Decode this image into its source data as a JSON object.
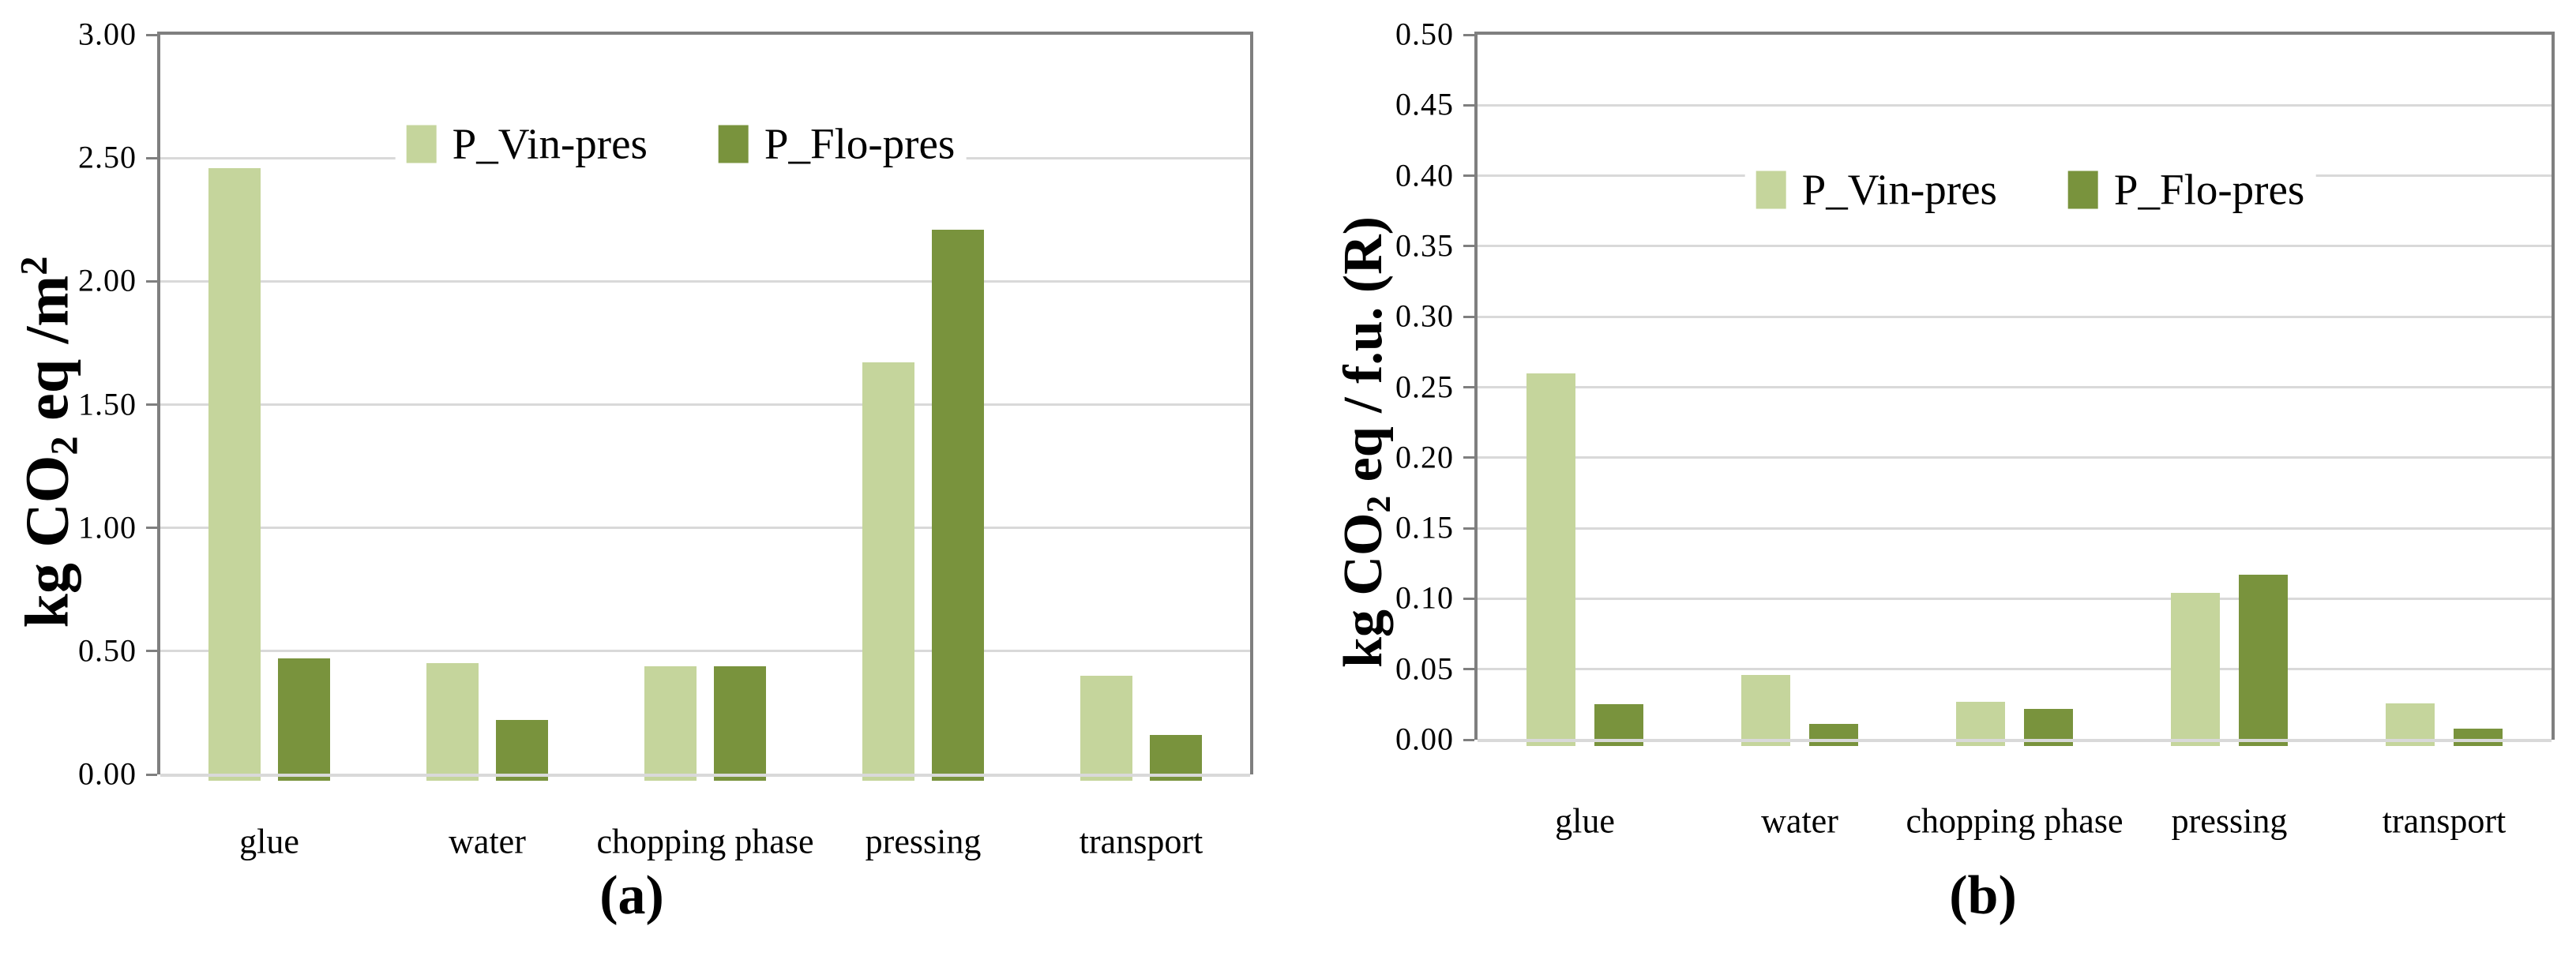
{
  "figure": {
    "background": "#FFFFFF",
    "panels": [
      "a",
      "b"
    ]
  },
  "colors": {
    "series_light_green": "#C5D59C",
    "series_dark_green": "#79933D",
    "gridline": "#D9D9D9",
    "axis_line": "#7F7F7F",
    "text": "#000000"
  },
  "chart_data": [
    {
      "id": "a",
      "type": "bar",
      "caption": "(a)",
      "ylabel": "kg CO2 eq /m2",
      "ylabel_parts": [
        {
          "t": "kg CO"
        },
        {
          "t": "2",
          "sub": true
        },
        {
          "t": " eq /m"
        },
        {
          "t": "2",
          "sup": true
        }
      ],
      "categories": [
        "glue",
        "water",
        "chopping phase",
        "pressing",
        "transport"
      ],
      "series": [
        {
          "name": "P_Vin-pres",
          "color": "#C5D59C",
          "values": [
            2.46,
            0.45,
            0.44,
            1.67,
            0.4
          ]
        },
        {
          "name": "P_Flo-pres",
          "color": "#79933D",
          "values": [
            0.47,
            0.22,
            0.44,
            2.21,
            0.16
          ]
        }
      ],
      "ylim": [
        0,
        3.0
      ],
      "ytick_step": 0.5,
      "yticks": [
        "0.00",
        "0.50",
        "1.00",
        "1.50",
        "2.00",
        "2.50",
        "3.00"
      ],
      "grid": true,
      "legend_position": "top-center-inside"
    },
    {
      "id": "b",
      "type": "bar",
      "caption": "(b)",
      "ylabel": "kg CO2 eq / f.u. (R)",
      "ylabel_parts": [
        {
          "t": "kg CO"
        },
        {
          "t": "2",
          "sub": true
        },
        {
          "t": " eq / f.u. (R)"
        }
      ],
      "categories": [
        "glue",
        "water",
        "chopping phase",
        "pressing",
        "transport"
      ],
      "series": [
        {
          "name": "P_Vin-pres",
          "color": "#C5D59C",
          "values": [
            0.26,
            0.046,
            0.027,
            0.104,
            0.026
          ]
        },
        {
          "name": "P_Flo-pres",
          "color": "#79933D",
          "values": [
            0.025,
            0.011,
            0.022,
            0.117,
            0.008
          ]
        }
      ],
      "ylim": [
        0,
        0.5
      ],
      "ytick_step": 0.05,
      "yticks": [
        "0.00",
        "0.05",
        "0.10",
        "0.15",
        "0.20",
        "0.25",
        "0.30",
        "0.35",
        "0.40",
        "0.45",
        "0.50"
      ],
      "grid": true,
      "legend_position": "top-center-inside"
    }
  ]
}
